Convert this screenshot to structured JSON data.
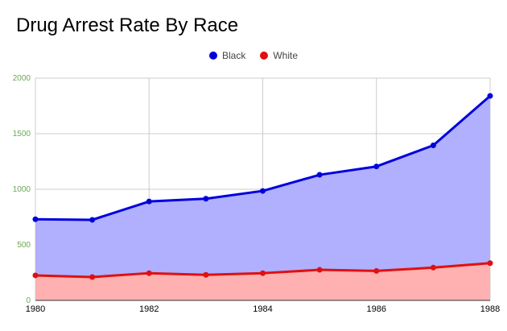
{
  "chart_data": {
    "type": "area",
    "title": "Drug Arrest Rate By Race",
    "xlabel": "",
    "ylabel": "",
    "x": [
      1980,
      1981,
      1982,
      1983,
      1984,
      1985,
      1986,
      1987,
      1988
    ],
    "x_tick_labels": [
      "1980",
      "1982",
      "1984",
      "1986",
      "1988"
    ],
    "x_tick_values": [
      1980,
      1982,
      1984,
      1986,
      1988
    ],
    "y_tick_labels": [
      "0",
      "500",
      "1000",
      "1500",
      "2000"
    ],
    "y_tick_values": [
      0,
      500,
      1000,
      1500,
      2000
    ],
    "xlim": [
      1980,
      1988
    ],
    "ylim": [
      0,
      2000
    ],
    "grid": true,
    "legend_position": "top-center",
    "series": [
      {
        "name": "Black",
        "color": "#0000dd",
        "fill": "#b0b0ff",
        "values": [
          730,
          725,
          890,
          915,
          985,
          1130,
          1205,
          1395,
          1840
        ]
      },
      {
        "name": "White",
        "color": "#e01010",
        "fill": "#ffb0b0",
        "values": [
          225,
          210,
          245,
          230,
          245,
          275,
          265,
          295,
          335
        ]
      }
    ]
  }
}
